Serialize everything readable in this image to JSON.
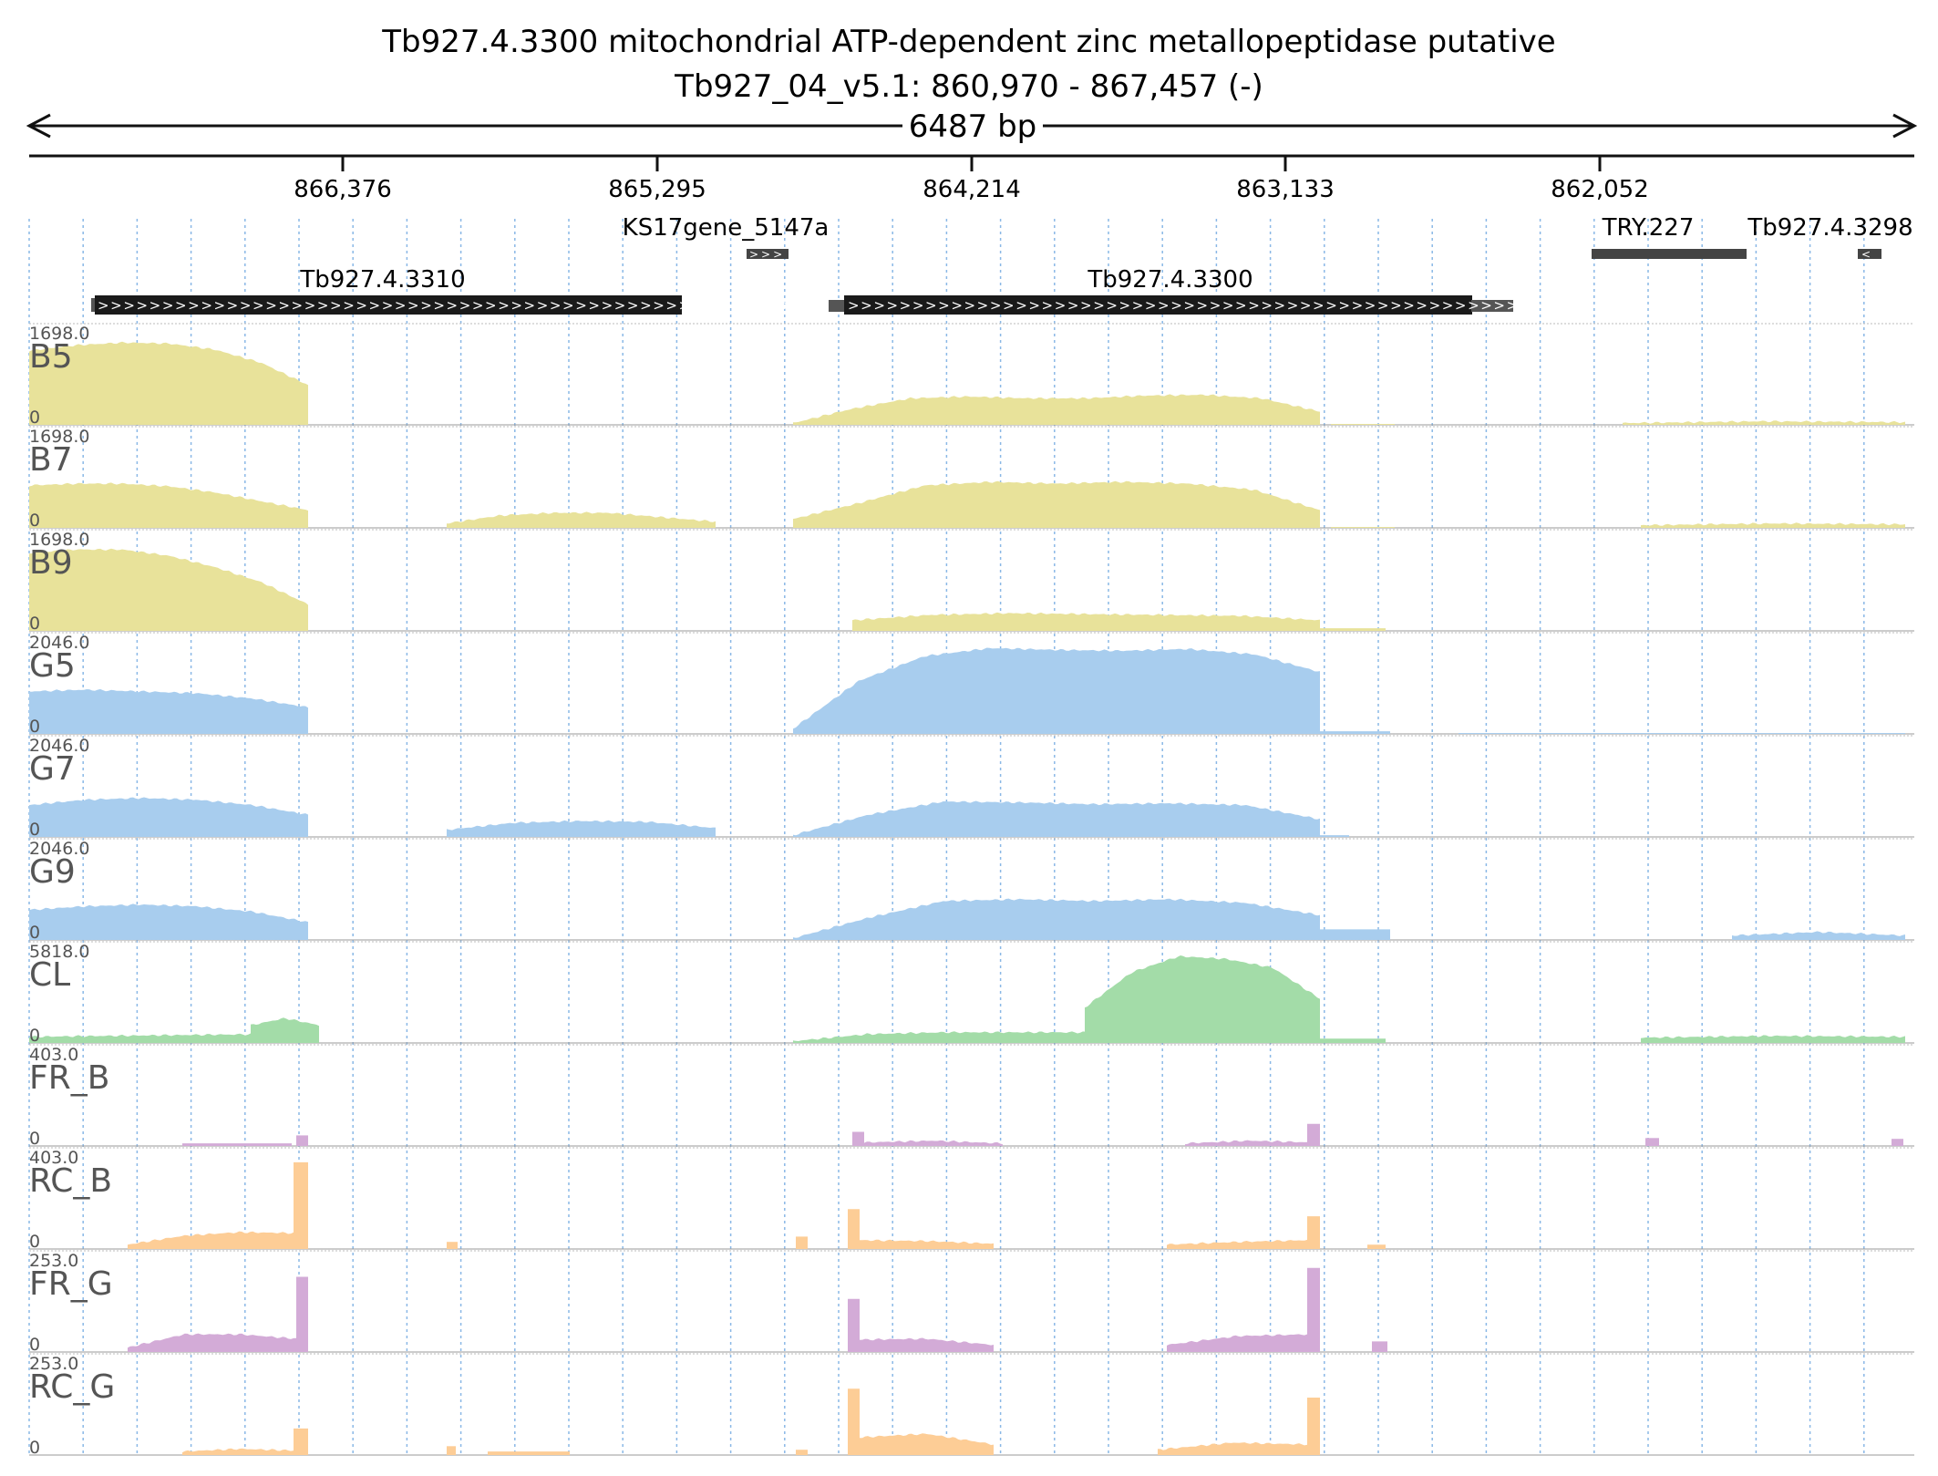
{
  "header": {
    "title": "Tb927.4.3300  mitochondrial ATP-dependent zinc metallopeptidase  putative",
    "location": "Tb927_04_v5.1: 860,970 - 867,457 (-)",
    "span": "6487 bp"
  },
  "ruler": {
    "ticks": [
      "866,376",
      "865,295",
      "864,214",
      "863,133",
      "862,052"
    ]
  },
  "genes": [
    {
      "label": "Tb927.4.3310",
      "strand": "+"
    },
    {
      "label": "KS17gene_5147a",
      "strand": "+"
    },
    {
      "label": "Tb927.4.3300",
      "strand": "+"
    },
    {
      "label": "TRY.227",
      "strand": ""
    },
    {
      "label": "Tb927.4.3298",
      "strand": "-"
    }
  ],
  "colors": {
    "bloodstream": "#e8e29a",
    "procyclic": "#a8cdee",
    "cl": "#a3dca8",
    "fr": "#d3abd7",
    "rc": "#fdcd96",
    "gene": "#1a1a1a",
    "gridline": "#8ab8e6"
  },
  "tracks": [
    {
      "name": "B5",
      "max": "1698.0",
      "min": "0",
      "color": "#e8e29a"
    },
    {
      "name": "B7",
      "max": "1698.0",
      "min": "0",
      "color": "#e8e29a"
    },
    {
      "name": "B9",
      "max": "1698.0",
      "min": "0",
      "color": "#e8e29a"
    },
    {
      "name": "G5",
      "max": "2046.0",
      "min": "0",
      "color": "#a8cdee"
    },
    {
      "name": "G7",
      "max": "2046.0",
      "min": "0",
      "color": "#a8cdee"
    },
    {
      "name": "G9",
      "max": "2046.0",
      "min": "0",
      "color": "#a8cdee"
    },
    {
      "name": "CL",
      "max": "5818.0",
      "min": "0",
      "color": "#a3dca8"
    },
    {
      "name": "FR_B",
      "max": "403.0",
      "min": "0",
      "color": "#d3abd7"
    },
    {
      "name": "RC_B",
      "max": "403.0",
      "min": "0",
      "color": "#fdcd96"
    },
    {
      "name": "FR_G",
      "max": "253.0",
      "min": "0",
      "color": "#d3abd7"
    },
    {
      "name": "RC_G",
      "max": "253.0",
      "min": "0",
      "color": "#fdcd96"
    }
  ]
}
